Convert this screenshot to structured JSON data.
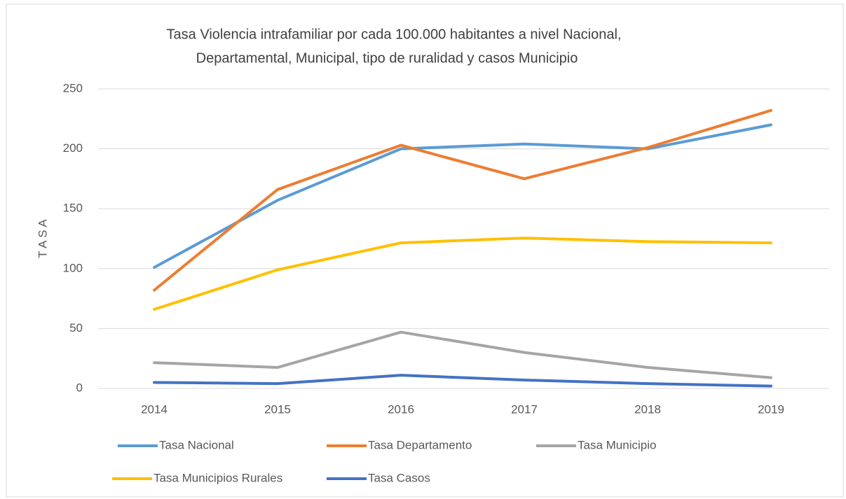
{
  "chart_data": {
    "type": "line",
    "title": [
      "Tasa Violencia intrafamiliar por cada 100.000 habitantes a nivel Nacional,",
      "Departamental, Municipal, tipo de ruralidad y casos Municipio"
    ],
    "ylabel": "T A S A",
    "categories": [
      "2014",
      "2015",
      "2016",
      "2017",
      "2018",
      "2019"
    ],
    "series": [
      {
        "name": "Tasa Nacional",
        "color": "#5b9bd5",
        "values": [
          101,
          157,
          200,
          204,
          200,
          220
        ]
      },
      {
        "name": "Tasa Departamento",
        "color": "#ed7d31",
        "values": [
          82,
          166,
          203,
          175,
          201,
          232
        ]
      },
      {
        "name": "Tasa Municipio",
        "color": "#a5a5a5",
        "values": [
          21.5,
          17.5,
          47,
          30,
          17.5,
          9
        ]
      },
      {
        "name": "Tasa Municipios Rurales",
        "color": "#ffc000",
        "values": [
          66,
          99,
          121.5,
          125.5,
          122.5,
          121.5
        ]
      },
      {
        "name": "Tasa Casos",
        "color": "#4472c4",
        "values": [
          5,
          4,
          11,
          7,
          4,
          2
        ]
      }
    ],
    "ylim": [
      0,
      250
    ],
    "yticks": [
      0,
      50,
      100,
      150,
      200,
      250
    ],
    "grid": true,
    "legend": "bottom"
  }
}
